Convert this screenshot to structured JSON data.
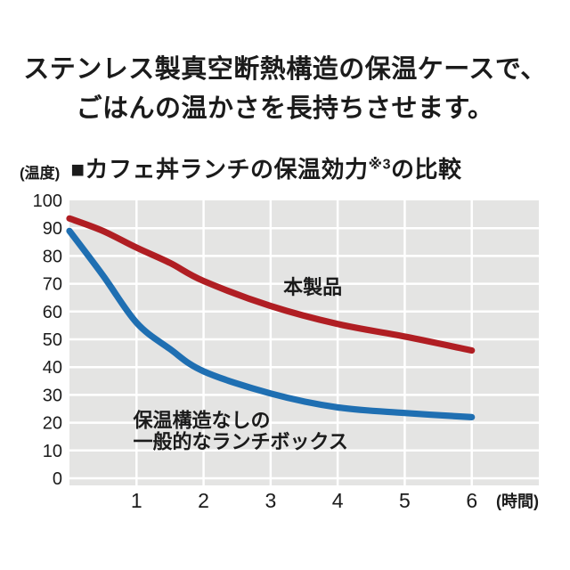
{
  "heading": {
    "line1": "ステンレス製真空断熱構造の保温ケースで、",
    "line2": "ごはんの温かさを長持ちさせます。"
  },
  "chart_header": {
    "y_unit_label": "(温度)",
    "title_main": "■カフェ丼ランチの保温効力",
    "title_sup": "※3",
    "title_suffix": "の比較"
  },
  "chart_data": {
    "type": "line",
    "title": "■カフェ丼ランチの保温効力※3の比較",
    "ylabel": "(温度)",
    "xlabel": "(時間)",
    "xlim": [
      0,
      7
    ],
    "ylim": [
      0,
      100
    ],
    "x_ticks": [
      1,
      2,
      3,
      4,
      5,
      6
    ],
    "y_ticks": [
      0,
      10,
      20,
      30,
      40,
      50,
      60,
      70,
      80,
      90,
      100
    ],
    "grid": true,
    "legend_position": "inline-annotations",
    "colors": {
      "plot_background": "#e4e4e3",
      "gridline": "#ffffff",
      "tick_text": "#1b1b1b",
      "product_line": "#b01e23",
      "generic_line": "#1f6fb2"
    },
    "x": [
      0,
      0.5,
      1,
      1.5,
      2,
      3,
      4,
      5,
      6
    ],
    "series": [
      {
        "name": "本製品",
        "color_key": "product_line",
        "values": [
          93.5,
          89,
          83,
          77.5,
          71,
          62,
          55.5,
          51,
          46
        ],
        "label_lines": [
          "本製品"
        ],
        "label_anchor": {
          "hour": 3.19,
          "temp": 66.3,
          "line_step_temp": 0
        }
      },
      {
        "name": "保温構造なしの一般的なランチボックス",
        "color_key": "generic_line",
        "values": [
          89,
          73,
          56,
          46.5,
          38.5,
          30.5,
          25.5,
          23.5,
          22
        ],
        "label_lines": [
          "保温構造なしの",
          "一般的なランチボックス"
        ],
        "label_anchor": {
          "hour": 0.95,
          "temp": 18.4,
          "line_step_temp": 7.7
        }
      }
    ]
  }
}
